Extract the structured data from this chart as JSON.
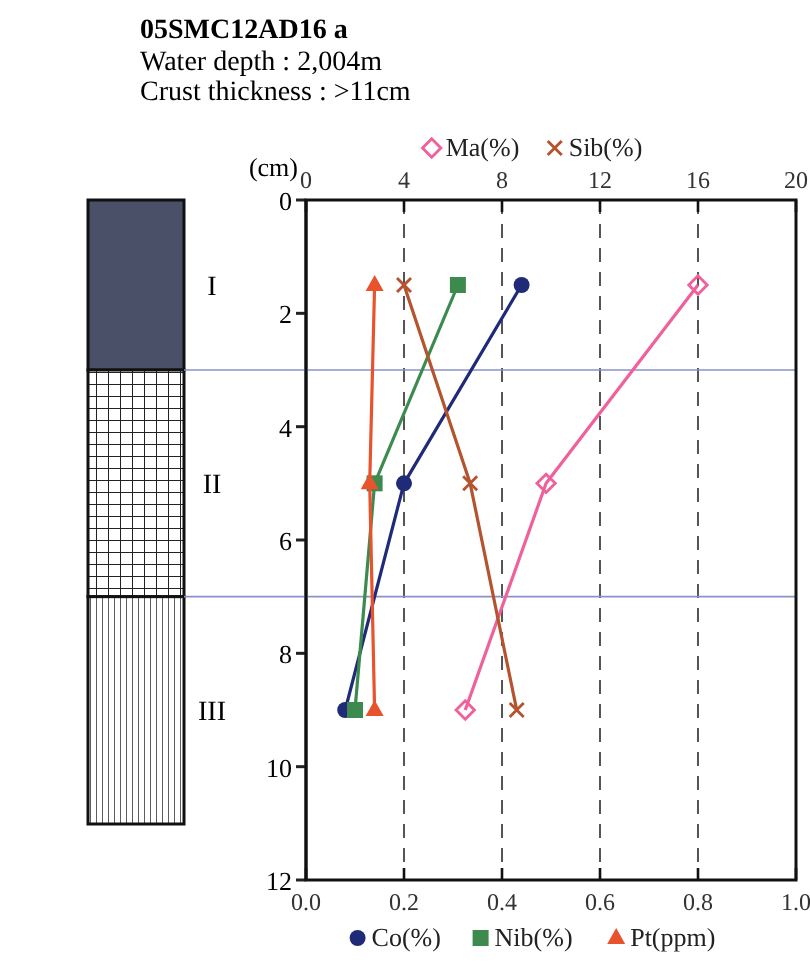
{
  "chart_data": {
    "type": "line",
    "title": "05SMC12AD16 a",
    "subtitle": "Water depth : 2,004m\nCrust thickness : >11cm",
    "annotations": [
      "I",
      "II",
      "III"
    ],
    "ylabel": "(cm)",
    "ylim": [
      12,
      0
    ],
    "yticks": [
      0,
      2,
      4,
      6,
      8,
      10,
      12
    ],
    "xlim": [
      0,
      1
    ],
    "xticks": [
      {
        "value": 0,
        "label": "0.0"
      },
      0.2,
      0.4,
      0.6,
      0.8,
      {
        "value": 1,
        "label": "1.0"
      }
    ],
    "x2lim": [
      0,
      20
    ],
    "x2ticks": [
      0,
      4,
      8,
      12,
      16,
      20
    ],
    "grid": "x",
    "legend": "bottom",
    "series": [
      {
        "name": "Co(%)",
        "color": "#1f2a78",
        "marker": "circle",
        "x": [
          0.44,
          0.2,
          0.08
        ],
        "values": [
          1.5,
          5,
          9
        ]
      },
      {
        "name": "Nib(%)",
        "color": "#3d8a4e",
        "marker": "square",
        "x": [
          0.31,
          0.14,
          0.1
        ],
        "values": [
          1.5,
          5,
          9
        ]
      },
      {
        "name": "Pt(ppm)",
        "color": "#e8522c",
        "marker": "triangle",
        "x": [
          0.14,
          0.13,
          0.14
        ],
        "values": [
          1.5,
          5,
          9
        ]
      },
      {
        "name": "Ma(%)",
        "color": "#f0609a",
        "marker": "diamond",
        "axis": "x2",
        "x": [
          16,
          9.8,
          6.5
        ],
        "values": [
          1.5,
          5,
          9
        ]
      },
      {
        "name": "Sib(%)",
        "color": "#b4532e",
        "marker": "cross",
        "axis": "x2",
        "x": [
          4,
          6.7,
          8.6
        ],
        "values": [
          1.5,
          5,
          9
        ]
      }
    ],
    "ref_lines": [
      {
        "axis": "y",
        "value": 3,
        "color": "#8a92cc"
      },
      {
        "axis": "y",
        "value": 7,
        "color": "#8a92cc"
      }
    ]
  }
}
